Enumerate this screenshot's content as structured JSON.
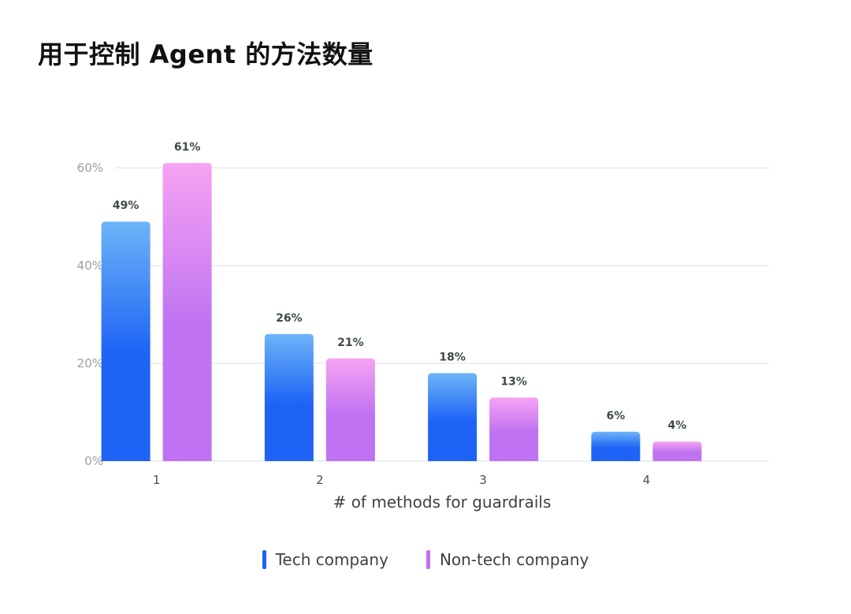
{
  "title": "用于控制 Agent 的方法数量",
  "chart_data": {
    "type": "bar",
    "title": "用于控制 Agent 的方法数量",
    "xlabel": "# of methods for guardrails",
    "ylabel": "",
    "categories": [
      "1",
      "2",
      "3",
      "4"
    ],
    "y_ticks": [
      "0%",
      "20%",
      "40%",
      "60%"
    ],
    "ylim": [
      0,
      60
    ],
    "grid": true,
    "legend_position": "bottom",
    "series": [
      {
        "name": "Tech company",
        "values": [
          49,
          26,
          18,
          6
        ],
        "labels": [
          "49%",
          "26%",
          "18%",
          "6%"
        ],
        "color_top": "#6db4f8",
        "color": "#1e63f5"
      },
      {
        "name": "Non-tech company",
        "values": [
          61,
          21,
          13,
          4
        ],
        "labels": [
          "61%",
          "21%",
          "13%",
          "4%"
        ],
        "color_top": "#f6a3f3",
        "color": "#bf72f2"
      }
    ]
  }
}
